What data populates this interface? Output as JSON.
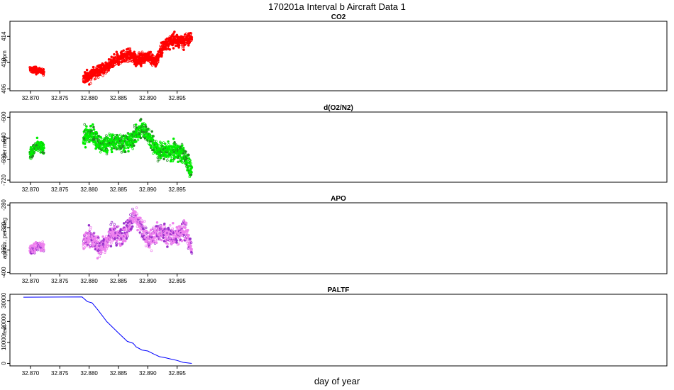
{
  "title": "170201a   Interval b Aircraft Data 1",
  "xlabel": "day of year",
  "colors": {
    "frame": "#000000",
    "co2": "#ff0000",
    "o2n2": "#00ee00",
    "o2n2_dark": "#228b22",
    "apo": "#ee82ee",
    "apo_dark": "#9932cc",
    "paltf": "#0000ff"
  },
  "chart_data": [
    {
      "type": "scatter",
      "id": "co2",
      "title": "CO2",
      "ylabel": "ppm",
      "xlim": [
        32.8665,
        32.9785
      ],
      "ylim": [
        405.7,
        416.3
      ],
      "xticks": [
        32.87,
        32.875,
        32.88,
        32.885,
        32.89,
        32.895
      ],
      "xtick_labels": [
        "32.870",
        "32.875",
        "32.880",
        "32.885",
        "32.890",
        "32.895"
      ],
      "yticks": [
        406,
        410,
        414
      ],
      "ytick_labels": [
        "406",
        "410",
        "414"
      ],
      "segments": [
        {
          "x_start": 32.8699,
          "x_end": 32.8723,
          "base": [
            409.0,
            408.6
          ],
          "noise": 0.5
        },
        {
          "x_start": 32.879,
          "x_end": 32.8975,
          "base": [
            407.6,
            408.3,
            408.9,
            409.6,
            410.7,
            411.2,
            410.4,
            411.0,
            410.1,
            412.8,
            413.4,
            413.3,
            414.0
          ],
          "noise": 0.9
        }
      ]
    },
    {
      "type": "scatter",
      "id": "o2n2",
      "title": "d(O2/N2)",
      "ylabel": "per meg",
      "xlim": [
        32.8665,
        32.9785
      ],
      "ylim": [
        -724,
        -590
      ],
      "xticks": [
        32.87,
        32.875,
        32.88,
        32.885,
        32.89,
        32.895
      ],
      "xtick_labels": [
        "32.870",
        "32.875",
        "32.880",
        "32.885",
        "32.890",
        "32.895"
      ],
      "yticks": [
        -720,
        -680,
        -640,
        -600
      ],
      "ytick_labels": [
        "-720",
        "-680",
        "-640",
        "-600"
      ],
      "segments": [
        {
          "x_start": 32.8699,
          "x_end": 32.8723,
          "base": [
            -672,
            -655,
            -660
          ],
          "noise": 10
        },
        {
          "x_start": 32.879,
          "x_end": 32.8975,
          "base": [
            -640,
            -630,
            -655,
            -650,
            -645,
            -650,
            -640,
            -620,
            -640,
            -665,
            -665,
            -665,
            -670,
            -705
          ],
          "noise": 16
        }
      ]
    },
    {
      "type": "scatter",
      "id": "apo",
      "title": "APO",
      "ylabel": "approx. per meg",
      "xlim": [
        32.8665,
        32.9785
      ],
      "ylim": [
        -402,
        -276
      ],
      "xticks": [
        32.87,
        32.875,
        32.88,
        32.885,
        32.89,
        32.895
      ],
      "xtick_labels": [
        "32.870",
        "32.875",
        "32.880",
        "32.885",
        "32.890",
        "32.895"
      ],
      "yticks": [
        -400,
        -360,
        -320,
        -280
      ],
      "ytick_labels": [
        "-400",
        "-360",
        "-320",
        "-280"
      ],
      "segments": [
        {
          "x_start": 32.8699,
          "x_end": 32.8723,
          "base": [
            -360,
            -352,
            -356
          ],
          "noise": 9
        },
        {
          "x_start": 32.879,
          "x_end": 32.8975,
          "base": [
            -345,
            -335,
            -355,
            -350,
            -330,
            -335,
            -325,
            -300,
            -320,
            -345,
            -330,
            -330,
            -335,
            -335,
            -320,
            -360
          ],
          "noise": 16
        }
      ]
    },
    {
      "type": "line",
      "id": "paltf",
      "title": "PALTF",
      "ylabel": "feet",
      "xlim": [
        32.8665,
        32.9785
      ],
      "ylim": [
        -1200,
        33000
      ],
      "xticks": [
        32.87,
        32.875,
        32.88,
        32.885,
        32.89,
        32.895
      ],
      "xtick_labels": [
        "32.870",
        "32.875",
        "32.880",
        "32.885",
        "32.890",
        "32.895"
      ],
      "yticks": [
        0,
        10000,
        20000,
        30000
      ],
      "ytick_labels": [
        "0",
        "10000",
        "20000",
        "30000"
      ],
      "x": [
        32.8688,
        32.8788,
        32.8797,
        32.8805,
        32.8815,
        32.883,
        32.885,
        32.8865,
        32.8875,
        32.888,
        32.889,
        32.89,
        32.891,
        32.892,
        32.893,
        32.894,
        32.895,
        32.896,
        32.8975
      ],
      "y": [
        31600,
        31700,
        29500,
        28900,
        25500,
        20000,
        14500,
        10500,
        9600,
        7900,
        6400,
        5900,
        4500,
        3200,
        2700,
        2000,
        1400,
        500,
        0
      ]
    }
  ]
}
